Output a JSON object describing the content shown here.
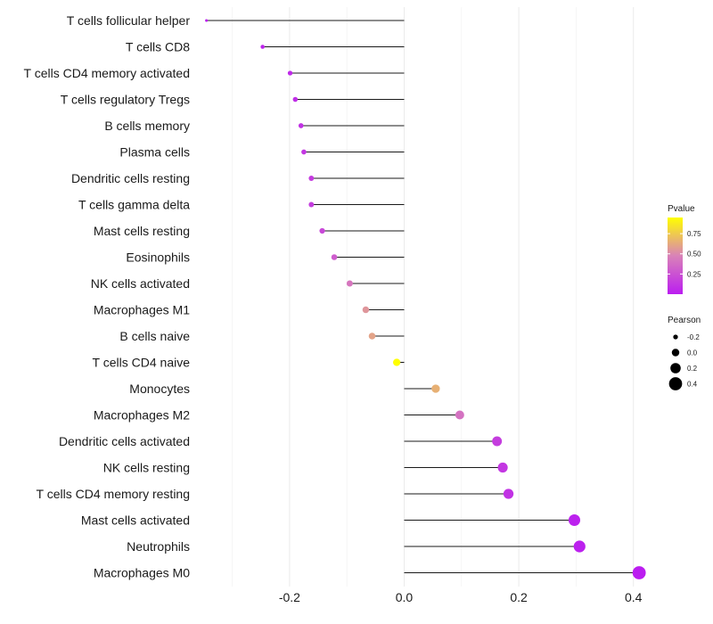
{
  "chart_data": {
    "type": "lollipop",
    "title": "",
    "xlabel": "",
    "ylabel": "",
    "xlim": [
      -0.36,
      0.43
    ],
    "x_ticks": [
      -0.2,
      0.0,
      0.2,
      0.4
    ],
    "x_tick_labels": [
      "-0.2",
      "0.0",
      "0.2",
      "0.4"
    ],
    "grid": true,
    "categories": [
      "T cells follicular helper",
      "T cells CD8",
      "T cells CD4 memory activated",
      "T cells regulatory  Tregs ",
      "B cells memory",
      "Plasma cells",
      "Dendritic cells resting",
      "T cells gamma delta",
      "Mast cells resting",
      "Eosinophils",
      "NK cells activated",
      "Macrophages M1",
      "B cells naive",
      "T cells CD4 naive",
      "Monocytes",
      "Macrophages M2",
      "Dendritic cells activated",
      "NK cells resting",
      "T cells CD4 memory resting",
      "Mast cells activated",
      "Neutrophils",
      "Macrophages M0"
    ],
    "pearson": [
      -0.345,
      -0.247,
      -0.199,
      -0.19,
      -0.18,
      -0.175,
      -0.162,
      -0.162,
      -0.143,
      -0.122,
      -0.095,
      -0.067,
      -0.056,
      -0.013,
      0.055,
      0.097,
      0.162,
      0.172,
      0.182,
      0.297,
      0.306,
      0.41
    ],
    "pvalue": [
      0.01,
      0.03,
      0.06,
      0.08,
      0.1,
      0.12,
      0.14,
      0.15,
      0.2,
      0.3,
      0.42,
      0.55,
      0.6,
      0.95,
      0.65,
      0.4,
      0.15,
      0.12,
      0.1,
      0.02,
      0.02,
      0.001
    ],
    "legend": {
      "position": "right",
      "color": {
        "title": "Pvalue",
        "breaks": [
          0.25,
          0.5,
          0.75
        ],
        "labels": [
          "0.25",
          "0.50",
          "0.75"
        ],
        "range": [
          0,
          0.95
        ],
        "low_color": "#bb1df0",
        "mid_color": "#d982b8",
        "high_color": "#ffff00"
      },
      "size": {
        "title": "Pearson",
        "breaks": [
          -0.2,
          0.0,
          0.2,
          0.4
        ],
        "labels": [
          "-0.2",
          "0.0",
          "0.2",
          "0.4"
        ]
      }
    }
  }
}
